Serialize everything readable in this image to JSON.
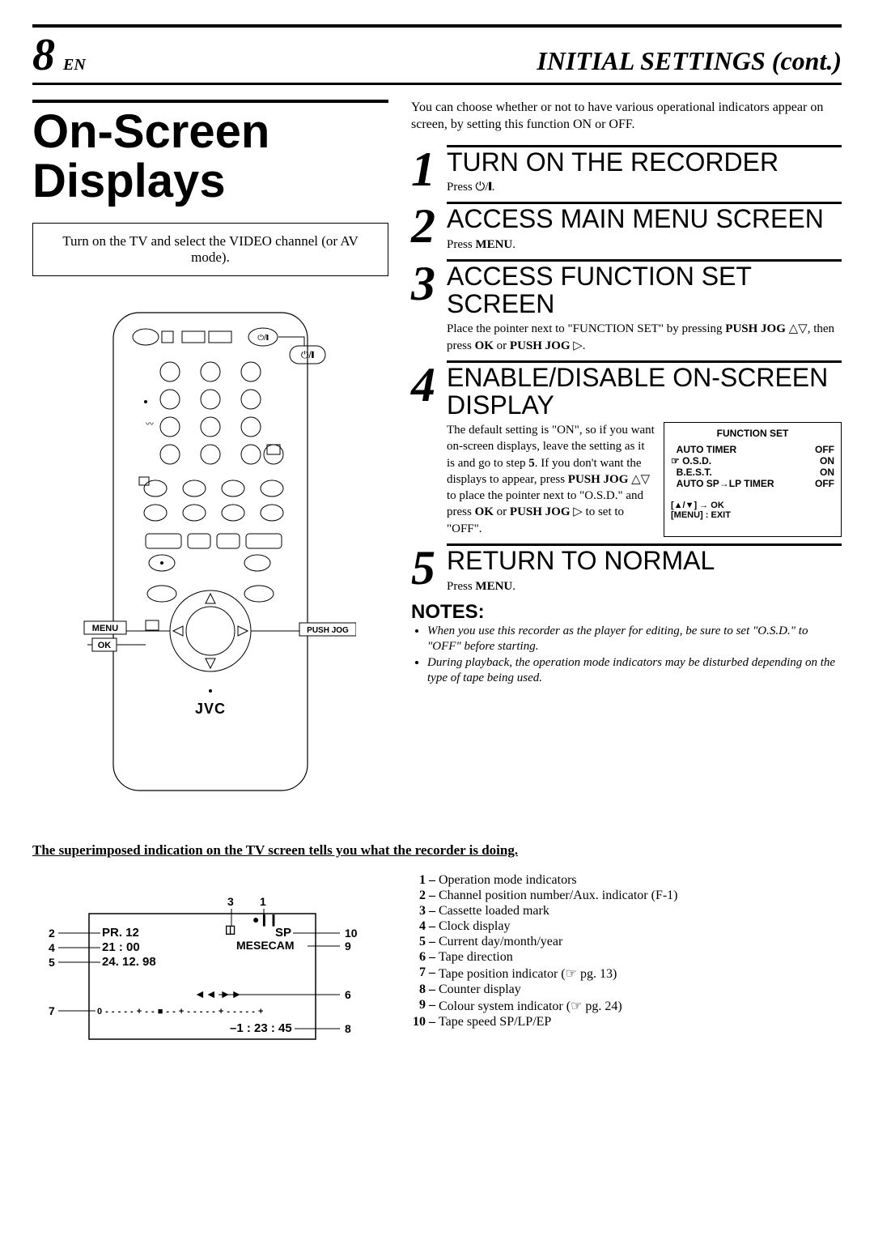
{
  "header": {
    "page_number": "8",
    "lang": "EN",
    "section_title": "INITIAL SETTINGS (cont.)"
  },
  "main_heading": "On-Screen Displays",
  "instruction_box": "Turn on the TV and select the VIDEO channel (or AV mode).",
  "remote_labels": {
    "menu": "MENU",
    "ok": "OK",
    "push_jog": "PUSH JOG",
    "brand": "JVC",
    "power_symbol": "⏻/❙"
  },
  "intro_right": "You can choose whether or not to have various operational indicators appear on screen, by setting this function ON or OFF.",
  "steps": [
    {
      "num": "1",
      "title": "TURN ON THE RECORDER",
      "body": "Press ⏻/❙."
    },
    {
      "num": "2",
      "title": "ACCESS MAIN MENU SCREEN",
      "body_prefix": "Press ",
      "body_bold": "MENU",
      "body_suffix": "."
    },
    {
      "num": "3",
      "title": "ACCESS FUNCTION SET SCREEN",
      "body_html": "Place the pointer next to \"FUNCTION SET\" by pressing <b>PUSH JOG</b> △▽, then press <b>OK</b> or <b>PUSH JOG</b> ▷."
    },
    {
      "num": "4",
      "title": "ENABLE/DISABLE ON-SCREEN DISPLAY",
      "body_html": "The default setting is \"ON\", so if you want on-screen displays, leave the setting as it is and go to step <b>5</b>. If you don't want the displays to appear, press <b>PUSH JOG</b> △▽ to place the pointer next to \"O.S.D.\" and press <b>OK</b> or <b>PUSH JOG</b> ▷ to set to \"OFF\"."
    },
    {
      "num": "5",
      "title": "RETURN TO NORMAL",
      "body_prefix": "Press ",
      "body_bold": "MENU",
      "body_suffix": "."
    }
  ],
  "function_set_box": {
    "title": "FUNCTION SET",
    "rows": [
      {
        "label": "AUTO TIMER",
        "value": "OFF"
      },
      {
        "label": "O.S.D.",
        "value": "ON",
        "pointer": true
      },
      {
        "label": "B.E.S.T.",
        "value": "ON"
      },
      {
        "label": "AUTO SP→LP TIMER",
        "value": "OFF"
      }
    ],
    "nav_line1": "[▲/▼] → OK",
    "nav_line2": "[MENU] : EXIT"
  },
  "notes": {
    "heading": "NOTES:",
    "items": [
      "When you use this recorder as the player for editing, be sure to set \"O.S.D.\" to  \"OFF\" before starting.",
      "During playback, the operation mode indicators may be disturbed depending on the type of tape being used."
    ]
  },
  "subtitle": "The superimposed indication on the TV screen tells you what the recorder is doing.",
  "tv_overlay": {
    "pr": "PR. 12",
    "time": "21 : 00",
    "date": "24. 12. 98",
    "cassette": "◫",
    "pause": "●❙❙",
    "sp": "SP",
    "mesecam": "MESECAM",
    "direction": "◄◄ ►►",
    "counter": "–1 : 23 : 45",
    "tapebar": "0 - - - - - + - - ■ - - + - - - - - + - - - - - +",
    "callouts": {
      "1": "1",
      "2": "2",
      "3": "3",
      "4": "4",
      "5": "5",
      "6": "6",
      "7": "7",
      "8": "8",
      "9": "9",
      "10": "10"
    }
  },
  "legend": [
    {
      "n": "1",
      "t": "Operation mode indicators"
    },
    {
      "n": "2",
      "t": "Channel position number/Aux. indicator (F-1)"
    },
    {
      "n": "3",
      "t": "Cassette loaded mark"
    },
    {
      "n": "4",
      "t": "Clock display"
    },
    {
      "n": "5",
      "t": "Current day/month/year"
    },
    {
      "n": "6",
      "t": "Tape direction"
    },
    {
      "n": "7",
      "t": "Tape position indicator (☞ pg. 13)"
    },
    {
      "n": "8",
      "t": "Counter display"
    },
    {
      "n": "9",
      "t": "Colour system indicator (☞ pg. 24)"
    },
    {
      "n": "10",
      "t": "Tape speed SP/LP/EP"
    }
  ],
  "colors": {
    "text": "#000000",
    "bg": "#ffffff",
    "border": "#000000"
  }
}
